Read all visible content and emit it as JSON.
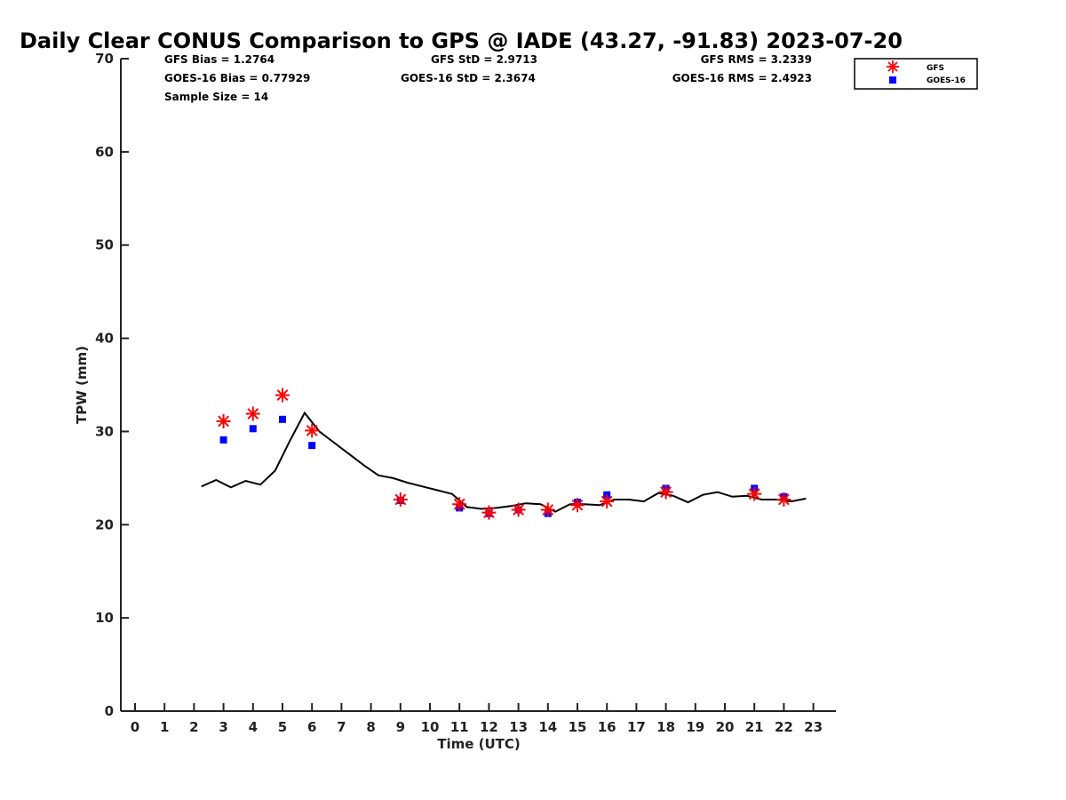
{
  "chart_data": {
    "type": "scatter",
    "title": "Daily Clear CONUS Comparison to GPS @ IADE (43.27, -91.83) 2023-07-20",
    "xlabel": "Time (UTC)",
    "ylabel": "TPW (mm)",
    "xlim": [
      -0.5,
      23.7
    ],
    "ylim": [
      0,
      70
    ],
    "xticks": [
      0,
      1,
      2,
      3,
      4,
      5,
      6,
      7,
      8,
      9,
      10,
      11,
      12,
      13,
      14,
      15,
      16,
      17,
      18,
      19,
      20,
      21,
      22,
      23
    ],
    "yticks": [
      0,
      10,
      20,
      30,
      40,
      50,
      60,
      70
    ],
    "grid": false,
    "legend_position": "top-right",
    "stats": {
      "gfs_bias": "GFS Bias = 1.2764",
      "goes_bias": "GOES-16 Bias = 0.77929",
      "sample_size": "Sample Size = 14",
      "gfs_std": "GFS StD = 2.9713",
      "goes_std": "GOES-16 StD = 2.3674",
      "gfs_rms": "GFS RMS = 3.2339",
      "goes_rms": "GOES-16 RMS = 2.4923"
    },
    "series": [
      {
        "name": "GFS",
        "marker": "asterisk",
        "color": "#ff0000",
        "x": [
          3,
          4,
          5,
          6,
          9,
          11,
          12,
          13,
          14,
          15,
          16,
          18,
          21,
          22
        ],
        "y": [
          31.1,
          31.9,
          33.9,
          30.1,
          22.7,
          22.2,
          21.3,
          21.6,
          21.6,
          22.1,
          22.5,
          23.5,
          23.3,
          22.7
        ]
      },
      {
        "name": "GOES-16",
        "marker": "square",
        "color": "#0000ff",
        "x": [
          3,
          4,
          5,
          6,
          9,
          11,
          12,
          13,
          14,
          15,
          16,
          18,
          21,
          22
        ],
        "y": [
          29.1,
          30.3,
          31.3,
          28.5,
          22.6,
          21.8,
          21.2,
          21.6,
          21.2,
          22.4,
          23.2,
          23.9,
          23.9,
          23.0
        ]
      },
      {
        "name": "",
        "marker": "line",
        "color": "#000000",
        "x": [
          2.25,
          2.75,
          3.25,
          3.75,
          4.25,
          4.75,
          5.25,
          5.75,
          6.25,
          6.75,
          7.25,
          7.75,
          8.25,
          8.75,
          9.25,
          9.75,
          10.25,
          10.75,
          11.25,
          11.75,
          12.25,
          12.75,
          13.25,
          13.75,
          14.25,
          14.75,
          15.25,
          15.75,
          16.25,
          16.75,
          17.25,
          17.75,
          18.25,
          18.75,
          19.25,
          19.75,
          20.25,
          20.75,
          21.25,
          21.75,
          22.25,
          22.75
        ],
        "y": [
          24.1,
          24.8,
          24.0,
          24.7,
          24.3,
          25.8,
          29.0,
          32.0,
          30.0,
          28.8,
          27.6,
          26.4,
          25.3,
          25.0,
          24.5,
          24.1,
          23.7,
          23.3,
          21.9,
          21.7,
          21.8,
          22.0,
          22.3,
          22.2,
          21.4,
          22.2,
          22.2,
          22.1,
          22.7,
          22.7,
          22.5,
          23.4,
          23.1,
          22.4,
          23.2,
          23.5,
          23.0,
          23.1,
          22.7,
          22.7,
          22.5,
          22.8
        ]
      }
    ]
  }
}
